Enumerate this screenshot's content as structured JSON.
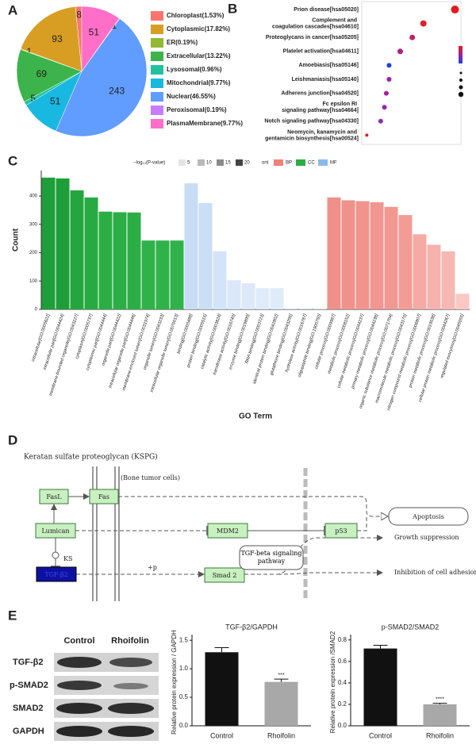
{
  "chart_data": [
    {
      "type": "pie",
      "panel": "A",
      "categories": [
        "Chloroplast(1.53%)",
        "Cytoplasmic(17.82%)",
        "ER(0.19%)",
        "Extracellular(13.22%)",
        "Lysosomal(0.96%)",
        "Mitochondrial(9.77%)",
        "Nuclear(46.55%)",
        "Peroxisomal(0.19%)",
        "PlasmaMembrane(9.77%)"
      ],
      "values": [
        8,
        93,
        1,
        69,
        5,
        51,
        243,
        1,
        51
      ],
      "colors": [
        "#f8766d",
        "#d89e24",
        "#93b834",
        "#3cb44b",
        "#22c2a0",
        "#19b8e0",
        "#619cff",
        "#c77cff",
        "#ff6ec7"
      ]
    },
    {
      "type": "dot",
      "panel": "B",
      "categories": [
        "Prion disease[hsa05020]",
        "Complement and coagulation cascades[hsa04610]",
        "Proteoglycans in cancer[hsa05205]",
        "Platelet activation[hsa04611]",
        "Amoebiasis[hsa05146]",
        "Leishmaniasis[hsa05140]",
        "Adherens junction[hsa04520]",
        "Fc epsilon RI signaling pathway[hsa04664]",
        "Notch signaling pathway[hsa04330]",
        "Neomycin, kanamycin and gentamicin biosynthesis[hsa00524]"
      ],
      "values": [
        0.97,
        0.63,
        0.51,
        0.38,
        0.26,
        0.26,
        0.23,
        0.21,
        0.17,
        0.02
      ],
      "sizes": [
        5,
        4,
        3.5,
        3.5,
        3,
        3,
        3,
        3,
        3,
        2
      ],
      "colors": [
        "#e41a1c",
        "#e0202a",
        "#c0206a",
        "#b0207a",
        "#2040e0",
        "#a020a0",
        "#a020a0",
        "#9028b0",
        "#8a30b0",
        "#e02020"
      ],
      "xlim": [
        0,
        1
      ]
    },
    {
      "type": "grouped-bar",
      "panel": "C",
      "xlabel": "GO Term",
      "ylabel": "Count",
      "ylim": [
        0,
        490
      ],
      "yticks": [
        0,
        100,
        200,
        300,
        400
      ],
      "shade_title": "−log₁₀(P-value)",
      "shades": [
        5,
        10,
        15,
        20
      ],
      "shade_colors": [
        "#e4e4e4",
        "#b8b8b8",
        "#8a8a8a",
        "#444444"
      ],
      "legend_title": "ont",
      "series": [
        {
          "name": "CC",
          "color": "#2aae45",
          "categories": [
            "intracellular[GO:0005622]",
            "intracellular part[GO:0044424]",
            "membrane-bounded organelle[GO:0043227]",
            "cytoplasm[GO:0005737]",
            "cytoplasmic part[GO:0044444]",
            "organelle part[GO:0044422]",
            "intracellular organelle part[GO:0044446]",
            "membrane-enclosed lumen[GO:0031974]",
            "organelle lumen[GO:0043233]",
            "intracellular organelle lumen[GO:0070013]"
          ],
          "values": [
            465,
            462,
            420,
            395,
            345,
            343,
            342,
            243,
            243,
            243
          ],
          "colors": [
            "#1e9e38",
            "#1e9e38",
            "#24a63e",
            "#28aa42",
            "#2cae46",
            "#2cae46",
            "#2cae46",
            "#30b24a",
            "#30b24a",
            "#30b24a"
          ]
        },
        {
          "name": "MF",
          "color": "#8ab8ee",
          "categories": [
            "binding[GO:0005488]",
            "protein binding[GO:0005515]",
            "catalytic activity[GO:0003824]",
            "transferase activity[GO:0016740]",
            "enzyme binding[GO:0019899]",
            "RNA binding[GO:0003723]",
            "identical protein binding[GO:0042802]",
            "glutathione binding[GO:0043295]",
            "hydrolase activity[GO:0016787]",
            "oligopeptide binding[GO:1900750]"
          ],
          "values": [
            445,
            375,
            205,
            103,
            92,
            75,
            75,
            5,
            5,
            5
          ],
          "colors": [
            "#c8dcf6",
            "#cadef6",
            "#d4e4f8",
            "#dbe8f9",
            "#dde9f9",
            "#e0ebfa",
            "#e0ebfa",
            "#e6effb",
            "#e6effb",
            "#e6effb"
          ]
        },
        {
          "name": "BP",
          "color": "#f08078",
          "categories": [
            "cellular process[GO:0009987]",
            "metabolic process[GO:0008152]",
            "cellular metabolic process[GO:0044237]",
            "primary metabolic process[GO:0044238]",
            "organic substance metabolic process[GO:0071704]",
            "macromolecule metabolic process[GO:0043170]",
            "nitrogen compound metabolic process[GO:0006807]",
            "protein metabolic process[GO:0019538]",
            "cellular protein metabolic process[GO:0044267]",
            "regulated exocytosis[GO:0045055]"
          ],
          "values": [
            395,
            385,
            382,
            378,
            362,
            333,
            265,
            228,
            205,
            55
          ],
          "colors": [
            "#f0908a",
            "#f0928c",
            "#f1948e",
            "#f19690",
            "#f29892",
            "#f39c96",
            "#f5aaa4",
            "#f6b2ad",
            "#f7b8b3",
            "#f9c8c4"
          ]
        }
      ]
    },
    {
      "type": "bar",
      "title": "TGF-β2/GAPDH",
      "ylabel": "Relative protein expression / GAPDH",
      "categories": [
        "Control",
        "Rhoifolin"
      ],
      "values": [
        1.29,
        0.77
      ],
      "errors": [
        0.08,
        0.05
      ],
      "colors": [
        "#111111",
        "#a8a8a8"
      ],
      "significance": "***",
      "ylim": [
        0,
        1.6
      ],
      "yticks": [
        {
          "value": 0,
          "label": "0.0"
        },
        0.5,
        {
          "value": 1,
          "label": "1.0"
        },
        1.5
      ]
    },
    {
      "type": "bar",
      "title": "p-SMAD2/SMAD2",
      "ylabel": "Relative protein expression /SMAD2",
      "categories": [
        "Control",
        "Rhoifolin"
      ],
      "values": [
        0.72,
        0.2
      ],
      "errors": [
        0.03,
        0.01
      ],
      "colors": [
        "#111111",
        "#a8a8a8"
      ],
      "significance": "****",
      "ylim": [
        0,
        0.85
      ],
      "yticks": [
        {
          "value": 0,
          "label": "0.0"
        },
        0.2,
        0.4,
        0.6,
        0.8
      ]
    }
  ],
  "diagram": {
    "panel": "D",
    "title": "Keratan sulfate proteoglycan (KSPG)",
    "cell": "(Bone tumor cells)",
    "fasl": "FasL",
    "fas": "Fas",
    "lumican": "Lumican",
    "mdm2": "MDM2",
    "p53": "p53",
    "ks": "KS",
    "tgfb2": "TGF-β2",
    "phos": "+p",
    "smad2": "Smad 2",
    "pathway": "TGF-beta signaling pathway",
    "apoptosis": "Apoptosis",
    "growth": "Growth suppression",
    "adhesion": "Inhibition of cell adhesion"
  },
  "blot": {
    "panel": "E",
    "lanes": [
      "Control",
      "Rhoifolin"
    ],
    "rows": [
      "TGF-β2",
      "p-SMAD2",
      "SMAD2",
      "GAPDH"
    ]
  }
}
